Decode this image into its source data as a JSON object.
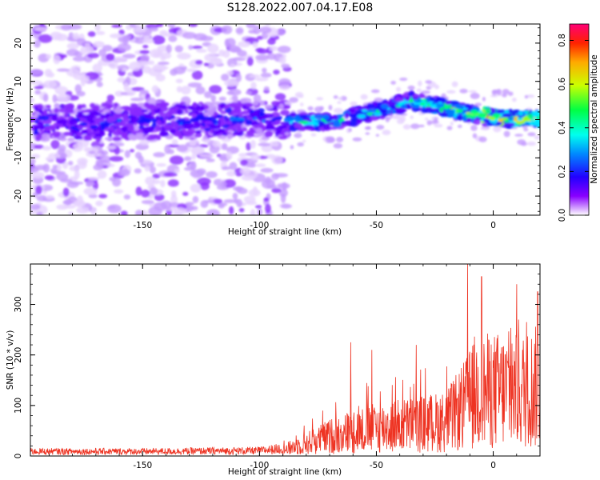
{
  "title": "S128.2022.007.04.17.E08",
  "colors": {
    "snr_line": "#ee3322",
    "axis": "#000000"
  },
  "chart_data": [
    {
      "type": "heatmap",
      "xlabel": "Height of straight line (km)",
      "ylabel": "Frequency (Hz)",
      "xlim": [
        -198,
        20
      ],
      "ylim": [
        -25,
        25
      ],
      "xticks": [
        -150,
        -100,
        -50,
        0
      ],
      "yticks": [
        -20,
        -10,
        0,
        10,
        20
      ],
      "xtick_labels": [
        "-150",
        "-100",
        "-50",
        "0"
      ],
      "ytick_labels": [
        "-20",
        "-10",
        "0",
        "10",
        "20"
      ],
      "ridge": {
        "x": [
          -198,
          -150,
          -100,
          -85,
          -70,
          -55,
          -45,
          -35,
          -28,
          -20,
          -10,
          0,
          10,
          20
        ],
        "y": [
          -1,
          -0.5,
          0,
          -0.5,
          -0.5,
          1.5,
          3,
          5,
          4,
          3,
          1.5,
          0.5,
          0.3,
          0.3
        ]
      },
      "colorbar": {
        "label": "Normalized spectral amplitude",
        "range": [
          0,
          0.875
        ],
        "ticks": [
          0.0,
          0.2,
          0.4,
          0.6,
          0.8
        ],
        "tick_labels": [
          "0.0",
          "0.2",
          "0.4",
          "0.6",
          "0.8"
        ],
        "colormap": "hsv"
      }
    },
    {
      "type": "line",
      "xlabel": "Height of straight line (km)",
      "ylabel": "SNR (10 * v/v)",
      "xlim": [
        -198,
        20
      ],
      "ylim": [
        0,
        380
      ],
      "xticks": [
        -150,
        -100,
        -50,
        0
      ],
      "yticks": [
        0,
        100,
        200,
        300
      ],
      "xtick_labels": [
        "-150",
        "-100",
        "-50",
        "0"
      ],
      "ytick_labels": [
        "0",
        "100",
        "200",
        "300"
      ],
      "envelope": {
        "x": [
          -198,
          -150,
          -100,
          -90,
          -85,
          -80,
          -70,
          -60,
          -50,
          -40,
          -30,
          -20,
          -15,
          -10,
          -8,
          -5,
          0,
          5,
          10,
          15,
          20
        ],
        "y": [
          12,
          12,
          14,
          20,
          35,
          45,
          70,
          90,
          100,
          110,
          115,
          125,
          160,
          200,
          230,
          230,
          235,
          235,
          230,
          240,
          250
        ]
      },
      "peaks": [
        {
          "x": -61,
          "y": 225
        },
        {
          "x": -52,
          "y": 210
        },
        {
          "x": -33,
          "y": 220
        },
        {
          "x": -11,
          "y": 380
        },
        {
          "x": -5,
          "y": 355
        },
        {
          "x": 10,
          "y": 340
        },
        {
          "x": 19,
          "y": 325
        }
      ]
    }
  ]
}
